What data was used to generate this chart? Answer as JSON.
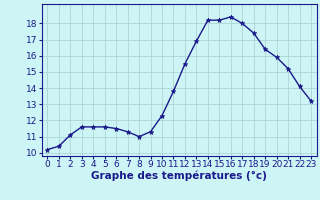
{
  "hours": [
    0,
    1,
    2,
    3,
    4,
    5,
    6,
    7,
    8,
    9,
    10,
    11,
    12,
    13,
    14,
    15,
    16,
    17,
    18,
    19,
    20,
    21,
    22,
    23
  ],
  "temperatures": [
    10.2,
    10.4,
    11.1,
    11.6,
    11.6,
    11.6,
    11.5,
    11.3,
    11.0,
    11.3,
    12.3,
    13.8,
    15.5,
    16.9,
    18.2,
    18.2,
    18.4,
    18.0,
    17.4,
    16.4,
    15.9,
    15.2,
    14.1,
    13.2
  ],
  "line_color": "#1a1a8c",
  "marker": "*",
  "marker_size": 3.5,
  "background_color": "#cef5f5",
  "grid_color": "#aed4d4",
  "xlabel": "Graphe des températures (°c)",
  "xlabel_color": "#1a1a8c",
  "xlabel_fontsize": 7.5,
  "tick_color": "#1a1a8c",
  "tick_fontsize": 6.5,
  "ylim_min": 9.8,
  "ylim_max": 19.2,
  "yticks": [
    10,
    11,
    12,
    13,
    14,
    15,
    16,
    17,
    18
  ],
  "xlim_min": -0.5,
  "xlim_max": 23.5,
  "xticks": [
    0,
    1,
    2,
    3,
    4,
    5,
    6,
    7,
    8,
    9,
    10,
    11,
    12,
    13,
    14,
    15,
    16,
    17,
    18,
    19,
    20,
    21,
    22,
    23
  ],
  "spine_color": "#1a1a8c",
  "linewidth": 1.0
}
